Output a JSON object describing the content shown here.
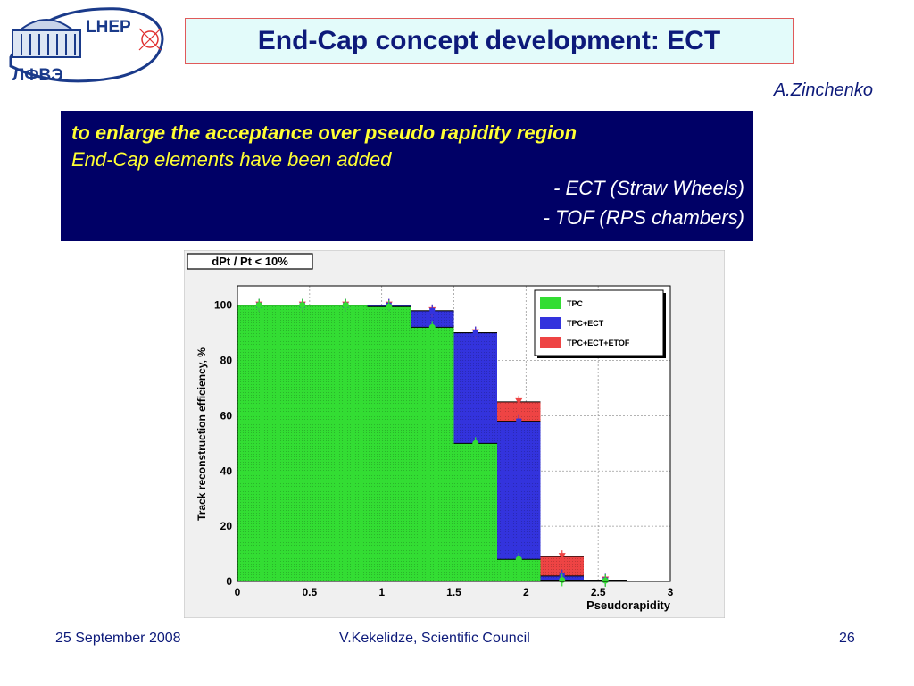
{
  "header": {
    "logo_text_top": "LHEP",
    "logo_text_bottom": "ЛФВЭ",
    "title": "End-Cap concept development: ECT",
    "author": "A.Zinchenko"
  },
  "textbox": {
    "line1": "to enlarge the acceptance over  pseudo rapidity region",
    "line2": "End-Cap elements have been added",
    "line3": "- ECT (Straw Wheels)",
    "line4": "- TOF (RPS chambers)"
  },
  "footer": {
    "date": "25 September 2008",
    "presenter": "V.Kekelidze, Scientific Council",
    "page": "26"
  },
  "chart_data": {
    "type": "bar",
    "title": "dPt / Pt < 10%",
    "xlabel": "Pseudorapidity",
    "ylabel": "Track reconstruction efficiency, %",
    "xlim": [
      0,
      3
    ],
    "ylim": [
      0,
      107
    ],
    "grid": true,
    "legend_position": "top-right",
    "x_ticks": [
      "0",
      "0.5",
      "1",
      "1.5",
      "2",
      "2.5",
      "3"
    ],
    "y_ticks": [
      "0",
      "20",
      "40",
      "60",
      "80",
      "100"
    ],
    "bin_edges": [
      0,
      0.3,
      0.6,
      0.9,
      1.2,
      1.5,
      1.8,
      2.1,
      2.4,
      2.7,
      3.0
    ],
    "series": [
      {
        "name": "TPC+ECT+ETOF",
        "color": "#ee4444",
        "values": [
          100,
          100,
          100,
          100,
          98,
          90,
          65,
          9,
          0.5,
          0
        ]
      },
      {
        "name": "TPC+ECT",
        "color": "#3333dd",
        "values": [
          100,
          100,
          100,
          100,
          98,
          90,
          58,
          2,
          0.5,
          0
        ]
      },
      {
        "name": "TPC",
        "color": "#33dd33",
        "values": [
          100,
          100,
          100,
          99.5,
          92,
          50,
          8,
          0.5,
          0.3,
          0
        ]
      }
    ]
  }
}
